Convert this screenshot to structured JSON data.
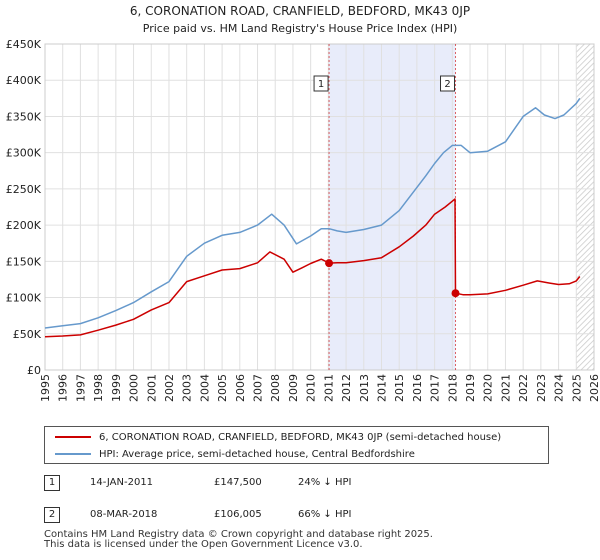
{
  "chart_data": {
    "type": "line",
    "title": "6, CORONATION ROAD, CRANFIELD, BEDFORD, MK43 0JP",
    "subtitle": "Price paid vs. HM Land Registry's House Price Index (HPI)",
    "xlim": [
      1995,
      2026
    ],
    "ylim": [
      0,
      450000
    ],
    "x_ticks": [
      1995,
      1996,
      1997,
      1998,
      1999,
      2000,
      2001,
      2002,
      2003,
      2004,
      2005,
      2006,
      2007,
      2008,
      2009,
      2010,
      2011,
      2012,
      2013,
      2014,
      2015,
      2016,
      2017,
      2018,
      2019,
      2020,
      2021,
      2022,
      2023,
      2024,
      2025,
      2026
    ],
    "y_ticks": [
      {
        "value": 0,
        "label": "£0"
      },
      {
        "value": 50000,
        "label": "£50K"
      },
      {
        "value": 100000,
        "label": "£100K"
      },
      {
        "value": 150000,
        "label": "£150K"
      },
      {
        "value": 200000,
        "label": "£200K"
      },
      {
        "value": 250000,
        "label": "£250K"
      },
      {
        "value": 300000,
        "label": "£300K"
      },
      {
        "value": 350000,
        "label": "£350K"
      },
      {
        "value": 400000,
        "label": "£400K"
      },
      {
        "value": 450000,
        "label": "£450K"
      }
    ],
    "shaded_span": [
      2011.04,
      2018.18
    ],
    "hatch_from": 2025.0,
    "series": [
      {
        "name": "6, CORONATION ROAD, CRANFIELD, BEDFORD, MK43 0JP (semi-detached house)",
        "color": "#cc0000",
        "x": [
          1995.0,
          1996.0,
          1997.0,
          1998.0,
          1999.0,
          2000.0,
          2001.0,
          2002.0,
          2003.0,
          2004.0,
          2005.0,
          2006.0,
          2007.0,
          2007.7,
          2008.5,
          2009.0,
          2009.5,
          2010.0,
          2010.6,
          2011.04,
          2011.5,
          2012.0,
          2013.0,
          2014.0,
          2015.0,
          2015.8,
          2016.5,
          2017.0,
          2017.6,
          2018.0,
          2018.15,
          2018.18,
          2018.6,
          2019.0,
          2020.0,
          2021.0,
          2022.0,
          2022.8,
          2023.5,
          2024.0,
          2024.6,
          2025.0,
          2025.2
        ],
        "values": [
          46000,
          47000,
          48500,
          55000,
          62000,
          70000,
          83000,
          93000,
          122000,
          130000,
          138000,
          140000,
          148000,
          163000,
          153000,
          135000,
          141000,
          147000,
          153000,
          147500,
          148000,
          148000,
          151000,
          155000,
          170000,
          185000,
          200000,
          215000,
          225000,
          233000,
          236000,
          106005,
          104000,
          104000,
          105000,
          110000,
          117000,
          123000,
          120000,
          118000,
          119000,
          123000,
          129000
        ]
      },
      {
        "name": "HPI: Average price, semi-detached house, Central Bedfordshire",
        "color": "#6699cc",
        "x": [
          1995.0,
          1996.0,
          1997.0,
          1998.0,
          1999.0,
          2000.0,
          2001.0,
          2002.0,
          2003.0,
          2004.0,
          2005.0,
          2006.0,
          2007.0,
          2007.8,
          2008.5,
          2009.2,
          2010.0,
          2010.6,
          2011.04,
          2011.5,
          2012.0,
          2013.0,
          2014.0,
          2015.0,
          2016.0,
          2016.5,
          2017.0,
          2017.5,
          2018.0,
          2018.5,
          2019.0,
          2020.0,
          2021.0,
          2022.0,
          2022.7,
          2023.2,
          2023.8,
          2024.3,
          2025.0,
          2025.2
        ],
        "values": [
          58000,
          61000,
          64000,
          72000,
          82000,
          93000,
          108000,
          122000,
          157000,
          175000,
          186000,
          190000,
          200000,
          215000,
          200000,
          174000,
          185000,
          195000,
          195000,
          192000,
          190000,
          194000,
          200000,
          220000,
          252000,
          268000,
          285000,
          300000,
          310000,
          310000,
          300000,
          302000,
          315000,
          350000,
          362000,
          352000,
          347000,
          352000,
          368000,
          375000
        ]
      }
    ],
    "sales": [
      {
        "id": "1",
        "x": 2011.04,
        "value": 147500
      },
      {
        "id": "2",
        "x": 2018.18,
        "value": 106005
      }
    ]
  },
  "legend": {
    "property_label": "6, CORONATION ROAD, CRANFIELD, BEDFORD, MK43 0JP (semi-detached house)",
    "hpi_label": "HPI: Average price, semi-detached house, Central Bedfordshire",
    "property_color": "#cc0000",
    "hpi_color": "#6699cc"
  },
  "sales_table": [
    {
      "id": "1",
      "date": "14-JAN-2011",
      "price": "£147,500",
      "pct": "24% ↓ HPI"
    },
    {
      "id": "2",
      "date": "08-MAR-2018",
      "price": "£106,005",
      "pct": "66% ↓ HPI"
    }
  ],
  "footer": {
    "line1": "Contains HM Land Registry data © Crown copyright and database right 2025.",
    "line2": "This data is licensed under the Open Government Licence v3.0."
  }
}
